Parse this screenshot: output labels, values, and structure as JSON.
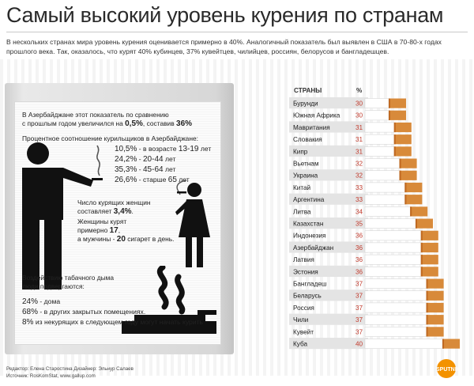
{
  "title": "Самый высокий уровень курения по странам",
  "intro": "В нескольких странах мира уровень курения оценивается примерно в 40%. Аналогичный показатель был выявлен в США в 70-80-х годах прошлого века. Так, оказалось, что курят 40% кубинцев, 37% кувейтцев, чилийцев, россиян, белорусов и бангладешцев.",
  "panel": {
    "azer_intro_1": "В Азербайджане этот показатель по сравнению",
    "azer_intro_2a": "с прошлым годом увеличился на ",
    "azer_intro_2b": "0,5%",
    "azer_intro_2c": ", составив ",
    "azer_intro_2d": "36%",
    "ratio_heading": "Процентное соотношение курильщиков в Азербайджане:",
    "age_groups": [
      {
        "pct": "10,5%",
        "sep": " - в возрасте ",
        "range": "13-19",
        "unit": " лет"
      },
      {
        "pct": "24,2%",
        "sep": " - ",
        "range": "20-44",
        "unit": " лет"
      },
      {
        "pct": "35,3%",
        "sep": " - ",
        "range": "45-64",
        "unit": " лет"
      },
      {
        "pct": "26,6%",
        "sep": " - старше ",
        "range": "65",
        "unit": " лет"
      }
    ],
    "women_1": "Число курящих женщин",
    "women_2a": "составляет ",
    "women_2b": "3,4%",
    "women_2c": ".",
    "women_3": "Женщины курят",
    "women_4a": "примерно ",
    "women_4b": "17",
    "women_4c": ",",
    "men_a": "а мужчины - ",
    "men_b": "20",
    "men_c": " сигарет в день.",
    "smoke_1": "Воздействию табачного дыма",
    "smoke_2": "люди подвергаются:",
    "exposure": [
      {
        "pct": "24%",
        "text": " - дома"
      },
      {
        "pct": "68%",
        "text": " - в других закрытых помещениях."
      },
      {
        "pct": "8%",
        "text": " из некурящих в следующем году могут начать курить"
      }
    ],
    "colors": {
      "accent_text": "#1a1a1a",
      "figure": "#111111"
    },
    "icons": [
      "man-smoking-icon",
      "woman-smoking-icon",
      "no-smoking-icon"
    ]
  },
  "chart_header": {
    "countries": "СТРАНЫ",
    "percent": "%"
  },
  "chart_data": {
    "type": "bar",
    "categories": [
      "Бурунди",
      "Южная Африка",
      "Мавритания",
      "Словакия",
      "Кипр",
      "Вьетнам",
      "Украина",
      "Китай",
      "Аргентина",
      "Литва",
      "Казахстан",
      "Индонезия",
      "Азербайджан",
      "Латвия",
      "Эстония",
      "Бангладеш",
      "Беларусь",
      "Россия",
      "Чили",
      "Кувейт",
      "Куба"
    ],
    "values": [
      30,
      30,
      31,
      31,
      31,
      32,
      32,
      33,
      33,
      34,
      35,
      36,
      36,
      36,
      36,
      37,
      37,
      37,
      37,
      37,
      40
    ],
    "labels": [
      "30",
      "30",
      "31",
      "31",
      "31",
      "32",
      "32",
      "33",
      "33",
      "34",
      "35",
      "36",
      "36",
      "36",
      "36",
      "37",
      "37",
      "37",
      "37",
      "37",
      "40"
    ],
    "title": "",
    "xlabel": "",
    "ylabel": "",
    "colors": {
      "filter": "#d88a3a",
      "filter_dark": "#c06a22",
      "paper": "#ffffff",
      "pct_text": "#c0392b",
      "row_alt": "#e4e4e4"
    }
  },
  "credits": {
    "line1": "Редактор: Елена Старостина  Дизайнер: Эльнур Салаев",
    "line2": "Источник: RosKomStat, www.gallup.com"
  },
  "logo": "SPUTNIK"
}
